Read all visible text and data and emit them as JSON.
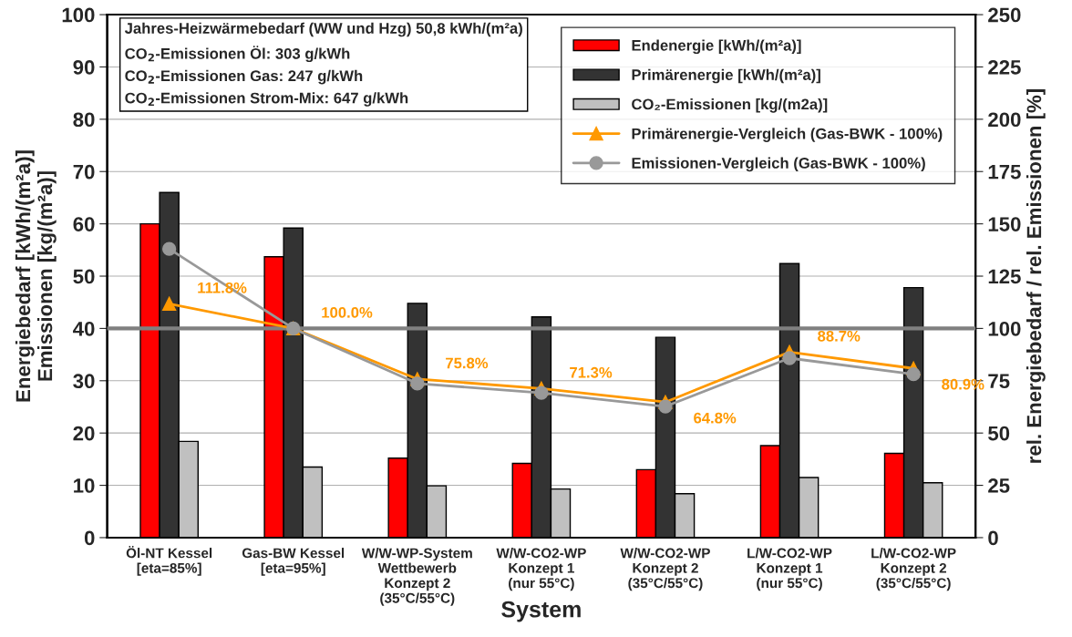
{
  "chart_data": {
    "type": "bar",
    "categories": [
      "Öl-NT Kessel\n[eta=85%]",
      "Gas-BW Kessel\n[eta=95%]",
      "W/W-WP-System\nWettbewerb\nKonzept 2\n(35°C/55°C)",
      "W/W-CO2-WP\nKonzept 1\n(nur 55°C)",
      "W/W-CO2-WP\nKonzept 2\n(35°C/55°C)",
      "L/W-CO2-WP\nKonzept 1\n(nur 55°C)",
      "L/W-CO2-WP\nKonzept 2\n(35°C/55°C)"
    ],
    "series": [
      {
        "name": "Endenergie [kWh/(m²a)]",
        "color": "#ff0000",
        "values": [
          60.0,
          53.7,
          15.2,
          14.2,
          13.0,
          17.6,
          16.1
        ]
      },
      {
        "name": "Primärenergie [kWh/(m²a)]",
        "color": "#333333",
        "values": [
          66.0,
          59.2,
          44.8,
          42.2,
          38.3,
          52.4,
          47.8
        ]
      },
      {
        "name": "CO₂-Emissionen [kg/(m2a)]",
        "color": "#c0c0c0",
        "values": [
          18.4,
          13.5,
          9.9,
          9.3,
          8.4,
          11.5,
          10.5
        ]
      },
      {
        "name": "Primärenergie-Vergleich (Gas-BWK - 100%)",
        "type": "line",
        "axis": "y2",
        "color": "#ff9900",
        "marker": "triangle",
        "values": [
          111.8,
          100.0,
          75.8,
          71.3,
          64.8,
          88.7,
          80.9
        ],
        "value_labels": [
          "111.8%",
          "100.0%",
          "75.8%",
          "71.3%",
          "64.8%",
          "88.7%",
          "80.9%"
        ]
      },
      {
        "name": "Emissionen-Vergleich (Gas-BWK - 100%)",
        "type": "line",
        "axis": "y2",
        "color": "#999999",
        "marker": "circle",
        "values": [
          138,
          100,
          73.7,
          69.2,
          62.7,
          85.8,
          78.1
        ]
      }
    ],
    "xlabel": "System",
    "ylabel": "Energiebedarf [kWh/(m²a)]\nEmissionen [kg/(m²a)]",
    "y2label": "rel. Energiebedarf / rel. Emissionen [%]",
    "ylim": [
      0,
      100
    ],
    "yticks": [
      0,
      10,
      20,
      30,
      40,
      50,
      60,
      70,
      80,
      90,
      100
    ],
    "y2lim": [
      0,
      250
    ],
    "y2ticks": [
      0,
      25,
      50,
      75,
      100,
      125,
      150,
      175,
      200,
      225,
      250
    ],
    "ref_lines": [
      {
        "axis": "y2",
        "value": 100,
        "color": "#808080"
      }
    ],
    "annotations": [
      "Jahres-Heizwärmebedarf (WW und Hzg) 50,8 kWh/(m²a)\nCO$_{2}$-Emissionen Öl: 303 g/kWh\nCO$_{2}$-Emissionen Gas: 247 g/kWh\nCO$_{2}$-Emissionen Strom-Mix: 647 g/kWh"
    ],
    "grid": "y",
    "legend": "top right"
  }
}
